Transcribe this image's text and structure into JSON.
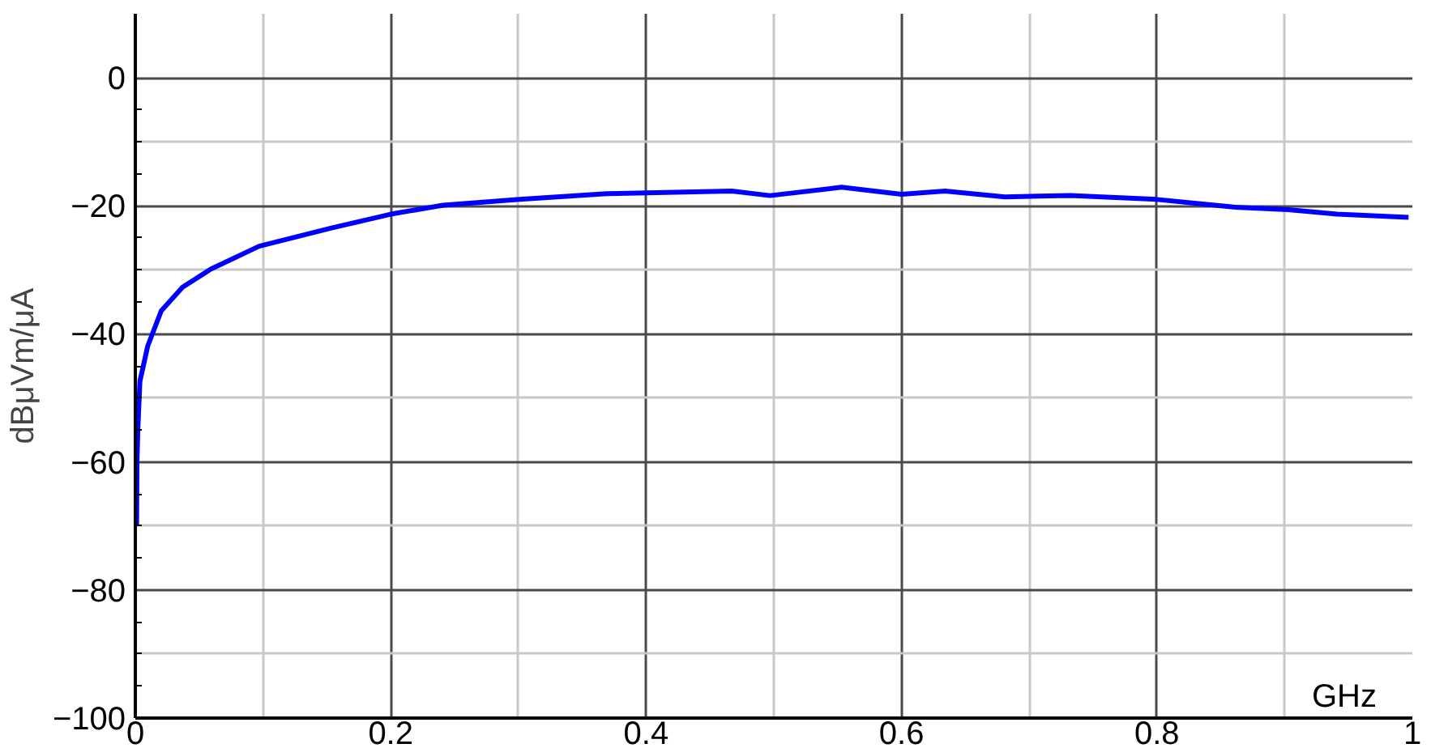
{
  "chart_data": {
    "type": "line",
    "xlabel": "GHz",
    "ylabel": "dBμVm/μA",
    "x": [
      0.001,
      0.0013,
      0.002,
      0.0036,
      0.0097,
      0.0203,
      0.037,
      0.059,
      0.097,
      0.153,
      0.2,
      0.241,
      0.301,
      0.369,
      0.467,
      0.497,
      0.553,
      0.6,
      0.634,
      0.681,
      0.732,
      0.8,
      0.86,
      0.903,
      0.941,
      0.997
    ],
    "series": [
      {
        "color": "#0000ff",
        "values": [
          -70,
          -60,
          -54.8,
          -47.4,
          -41.9,
          -36.4,
          -32.7,
          -29.9,
          -26.3,
          -23.5,
          -21.3,
          -19.9,
          -19.0,
          -18.1,
          -17.7,
          -18.4,
          -17.1,
          -18.2,
          -17.7,
          -18.6,
          -18.4,
          -19.0,
          -20.2,
          -20.6,
          -21.3,
          -21.8
        ]
      }
    ],
    "xlim": [
      0,
      1
    ],
    "ylim": [
      -100,
      10
    ],
    "xticks": [
      0,
      0.2,
      0.4,
      0.6,
      0.8,
      1
    ],
    "yticks": [
      -100,
      -80,
      -60,
      -40,
      -20,
      0
    ],
    "grid": true,
    "marker": "none",
    "line_style": "solid"
  }
}
